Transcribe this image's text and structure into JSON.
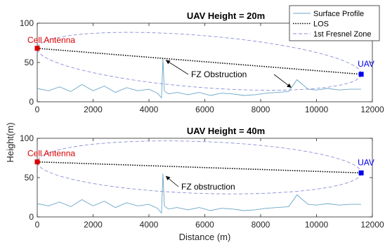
{
  "chart_data": [
    {
      "type": "line",
      "title": "UAV Height = 20m",
      "xlabel": "",
      "ylabel": "",
      "xlim": [
        0,
        12000
      ],
      "ylim": [
        0,
        100
      ],
      "xticks": [
        0,
        2000,
        4000,
        6000,
        8000,
        10000,
        12000
      ],
      "yticks": [
        0,
        50,
        100
      ],
      "grid": false,
      "legend": {
        "placement": "top-right",
        "entries": [
          {
            "label": "Surface Profile",
            "color": "#6aa6c8",
            "style": "solid"
          },
          {
            "label": "LOS",
            "color": "#000000",
            "style": "dotted"
          },
          {
            "label": "1st Fresnel Zone",
            "color": "#8a8fd6",
            "style": "dashed"
          }
        ]
      },
      "series": [
        {
          "name": "Surface Profile",
          "x": [
            0,
            400,
            800,
            1200,
            1600,
            2000,
            2400,
            2800,
            3200,
            3600,
            4000,
            4300,
            4450,
            4500,
            4550,
            4700,
            5000,
            5400,
            5800,
            6200,
            6600,
            7000,
            7400,
            7800,
            8200,
            8600,
            9000,
            9300,
            9500,
            9700,
            10000,
            10400,
            10800,
            11200,
            11600
          ],
          "values": [
            17,
            14,
            19,
            13,
            22,
            14,
            20,
            12,
            18,
            14,
            16,
            11,
            5,
            55,
            14,
            10,
            12,
            9,
            12,
            8,
            11,
            10,
            8,
            9,
            11,
            12,
            13,
            28,
            22,
            16,
            15,
            17,
            15,
            16,
            16
          ]
        },
        {
          "name": "LOS",
          "x": [
            0,
            11600
          ],
          "values": [
            68,
            35
          ]
        },
        {
          "name": "1st Fresnel Zone",
          "center": [
            [
              0,
              68
            ],
            [
              11600,
              35
            ]
          ],
          "max_radius": 33
        }
      ],
      "markers": [
        {
          "label": "Cell Antenna",
          "x": 0,
          "y": 68,
          "color": "#dd0000"
        },
        {
          "label": "UAV",
          "x": 11600,
          "y": 35,
          "color": "#0000ee"
        }
      ],
      "annotation": {
        "text": "FZ Obstruction",
        "arrows_to": [
          [
            4600,
            53
          ],
          [
            9100,
            18
          ]
        ]
      }
    },
    {
      "type": "line",
      "title": "UAV Height = 40m",
      "xlabel": "Distance (m)",
      "ylabel": "Height(m)",
      "xlim": [
        0,
        12000
      ],
      "ylim": [
        0,
        100
      ],
      "xticks": [
        0,
        2000,
        4000,
        6000,
        8000,
        10000,
        12000
      ],
      "yticks": [
        0,
        50,
        100
      ],
      "grid": false,
      "series": [
        {
          "name": "Surface Profile",
          "x": [
            0,
            400,
            800,
            1200,
            1600,
            2000,
            2400,
            2800,
            3200,
            3600,
            4000,
            4300,
            4450,
            4500,
            4550,
            4700,
            5000,
            5400,
            5800,
            6200,
            6600,
            7000,
            7400,
            7800,
            8200,
            8600,
            9000,
            9300,
            9500,
            9700,
            10000,
            10400,
            10800,
            11200,
            11600
          ],
          "values": [
            17,
            14,
            19,
            13,
            22,
            14,
            20,
            12,
            18,
            14,
            16,
            11,
            5,
            55,
            14,
            10,
            12,
            9,
            12,
            8,
            11,
            10,
            8,
            9,
            11,
            12,
            13,
            28,
            22,
            16,
            15,
            17,
            15,
            16,
            16
          ]
        },
        {
          "name": "LOS",
          "x": [
            0,
            11600
          ],
          "values": [
            70,
            56
          ]
        },
        {
          "name": "1st Fresnel Zone",
          "center": [
            [
              0,
              70
            ],
            [
              11600,
              56
            ]
          ],
          "max_radius": 33
        }
      ],
      "markers": [
        {
          "label": "Cell Antenna",
          "x": 0,
          "y": 70,
          "color": "#dd0000"
        },
        {
          "label": "UAV",
          "x": 11600,
          "y": 56,
          "color": "#0000ee"
        }
      ],
      "annotation": {
        "text": "FZ obstruction",
        "arrows_to": [
          [
            4600,
            52
          ]
        ]
      }
    }
  ]
}
